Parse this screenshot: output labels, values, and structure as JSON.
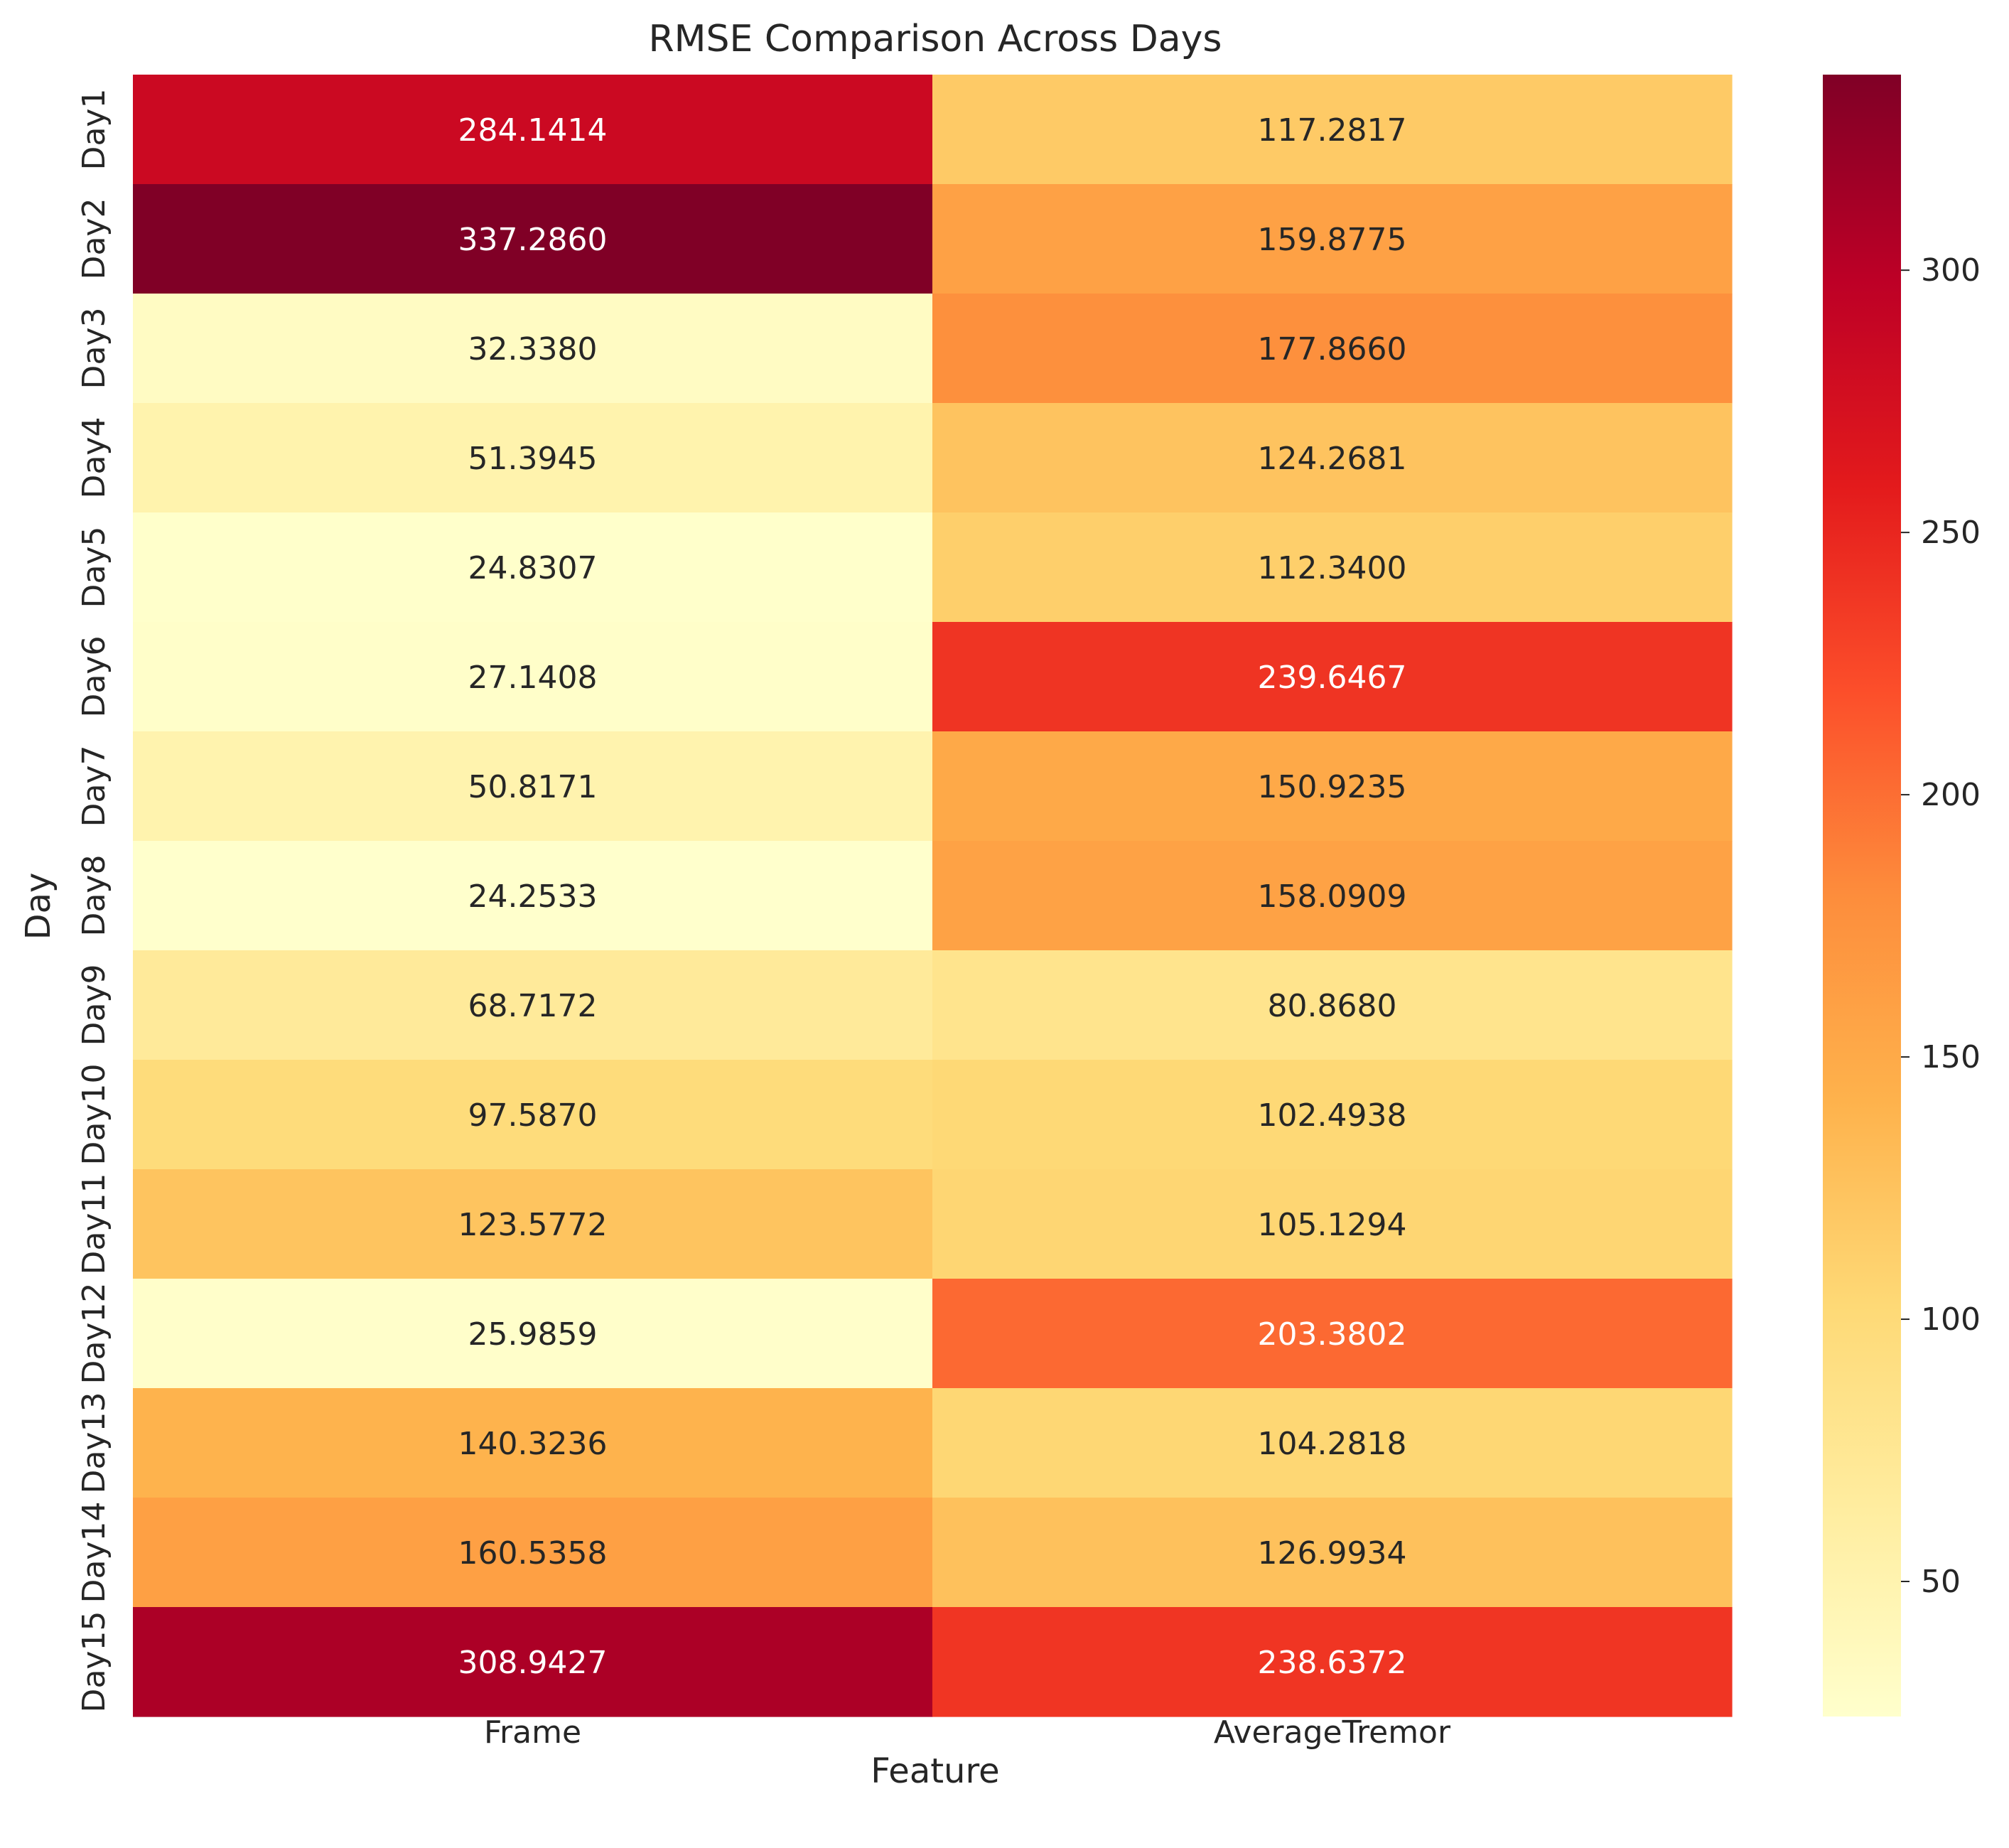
{
  "chart_data": {
    "type": "heatmap",
    "title": "RMSE Comparison Across Days",
    "xlabel": "Feature",
    "ylabel": "Day",
    "columns": [
      "Frame",
      "AverageTremor"
    ],
    "rows": [
      "Day1",
      "Day2",
      "Day3",
      "Day4",
      "Day5",
      "Day6",
      "Day7",
      "Day8",
      "Day9",
      "Day10",
      "Day11",
      "Day12",
      "Day13",
      "Day14",
      "Day15"
    ],
    "values": [
      [
        284.1414,
        117.2817
      ],
      [
        337.286,
        159.8775
      ],
      [
        32.338,
        177.866
      ],
      [
        51.3945,
        124.2681
      ],
      [
        24.8307,
        112.34
      ],
      [
        27.1408,
        239.6467
      ],
      [
        50.8171,
        150.9235
      ],
      [
        24.2533,
        158.0909
      ],
      [
        68.7172,
        80.868
      ],
      [
        97.587,
        102.4938
      ],
      [
        123.5772,
        105.1294
      ],
      [
        25.9859,
        203.3802
      ],
      [
        140.3236,
        104.2818
      ],
      [
        160.5358,
        126.9934
      ],
      [
        308.9427,
        238.6372
      ]
    ],
    "value_format": "4 decimals",
    "colormap": "YlOrRd",
    "colormap_stops": [
      "#ffffcc",
      "#ffeda0",
      "#fed976",
      "#feb24c",
      "#fd8d3c",
      "#fc4e2a",
      "#e31a1c",
      "#bd0026",
      "#800026"
    ],
    "color_range": [
      24.2533,
      337.286
    ],
    "colorbar_ticks": [
      50,
      100,
      150,
      200,
      250,
      300
    ],
    "grid": false
  }
}
